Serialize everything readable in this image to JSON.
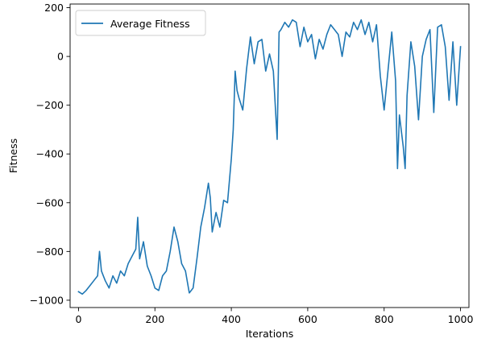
{
  "chart_data": {
    "type": "line",
    "title": "",
    "xlabel": "Iterations",
    "ylabel": "Fitness",
    "xlim": [
      -22,
      1022
    ],
    "ylim": [
      -1030,
      215
    ],
    "xticks": [
      0,
      200,
      400,
      600,
      800,
      1000
    ],
    "xtick_labels": [
      "0",
      "200",
      "400",
      "600",
      "800",
      "1000"
    ],
    "yticks": [
      -1000,
      -800,
      -600,
      -400,
      -200,
      0,
      200
    ],
    "ytick_labels": [
      "−1000",
      "−800",
      "−600",
      "−400",
      "−200",
      "0",
      "200"
    ],
    "grid": false,
    "legend": {
      "placement": "upper-left"
    },
    "series": [
      {
        "name": "Average Fitness",
        "color": "#1f77b4",
        "x": [
          0,
          10,
          20,
          30,
          40,
          50,
          55,
          60,
          70,
          80,
          90,
          100,
          110,
          120,
          130,
          140,
          150,
          155,
          160,
          170,
          180,
          190,
          200,
          210,
          220,
          230,
          240,
          250,
          260,
          270,
          280,
          290,
          300,
          310,
          320,
          330,
          340,
          345,
          350,
          360,
          370,
          380,
          390,
          400,
          405,
          410,
          415,
          420,
          430,
          440,
          450,
          460,
          470,
          480,
          490,
          500,
          510,
          520,
          525,
          530,
          540,
          550,
          560,
          570,
          580,
          590,
          600,
          610,
          620,
          630,
          640,
          650,
          660,
          670,
          680,
          690,
          700,
          710,
          720,
          730,
          740,
          750,
          760,
          770,
          780,
          790,
          800,
          810,
          820,
          830,
          835,
          840,
          850,
          855,
          860,
          870,
          880,
          890,
          900,
          910,
          920,
          930,
          940,
          950,
          960,
          970,
          980,
          990,
          1000
        ],
        "values": [
          -965,
          -975,
          -960,
          -940,
          -920,
          -900,
          -800,
          -880,
          -920,
          -950,
          -900,
          -930,
          -880,
          -900,
          -850,
          -820,
          -790,
          -660,
          -830,
          -760,
          -860,
          -900,
          -950,
          -960,
          -900,
          -880,
          -800,
          -700,
          -760,
          -850,
          -880,
          -970,
          -950,
          -830,
          -700,
          -620,
          -520,
          -580,
          -720,
          -640,
          -700,
          -590,
          -600,
          -420,
          -300,
          -60,
          -140,
          -170,
          -220,
          -50,
          80,
          -30,
          60,
          70,
          -60,
          10,
          -60,
          -340,
          100,
          110,
          140,
          120,
          150,
          140,
          40,
          120,
          60,
          90,
          -10,
          70,
          30,
          90,
          130,
          110,
          90,
          0,
          100,
          80,
          140,
          110,
          150,
          90,
          140,
          60,
          130,
          -80,
          -220,
          -60,
          100,
          -100,
          -460,
          -240,
          -370,
          -460,
          -160,
          60,
          -40,
          -260,
          0,
          70,
          110,
          -230,
          120,
          130,
          40,
          -180,
          60,
          -200,
          40
        ]
      }
    ]
  }
}
